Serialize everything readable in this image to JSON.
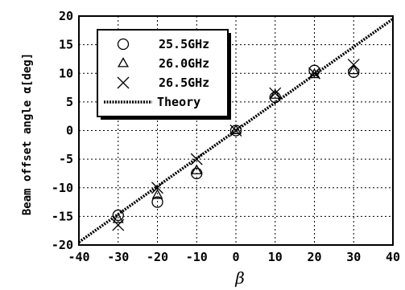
{
  "chart_data": {
    "type": "scatter",
    "title": "",
    "xlabel": "β",
    "ylabel": "Beam offset angle α[deg]",
    "xlim": [
      -40,
      40
    ],
    "ylim": [
      -20,
      20
    ],
    "xticks": [
      -40,
      -30,
      -20,
      -10,
      0,
      10,
      20,
      30,
      40
    ],
    "yticks": [
      -20,
      -15,
      -10,
      -5,
      0,
      5,
      10,
      15,
      20
    ],
    "grid": true,
    "legend_position": "top-left",
    "series": [
      {
        "name": "25.5GHz",
        "marker": "circle",
        "x": [
          -30,
          -20,
          -10,
          0,
          10,
          20,
          30
        ],
        "y": [
          -14.8,
          -12.5,
          -7.5,
          0,
          5.8,
          10.5,
          10.2
        ]
      },
      {
        "name": "26.0GHz",
        "marker": "triangle",
        "x": [
          -30,
          -20,
          -10,
          0,
          10,
          20,
          30
        ],
        "y": [
          -15.5,
          -11.3,
          -7.0,
          0,
          6.2,
          9.8,
          10.5
        ]
      },
      {
        "name": "26.5GHz",
        "marker": "x",
        "x": [
          -30,
          -20,
          -10,
          0,
          10,
          20,
          30
        ],
        "y": [
          -16.5,
          -10.0,
          -5.0,
          0,
          6.5,
          10.0,
          11.5
        ]
      },
      {
        "name": "Theory",
        "style": "dotted-line",
        "x": [
          -40,
          40
        ],
        "y": [
          -19.5,
          19.5
        ]
      }
    ]
  }
}
